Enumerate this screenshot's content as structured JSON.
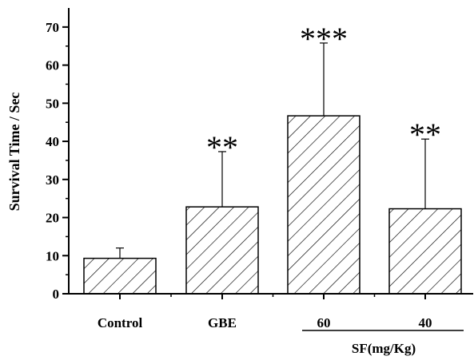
{
  "chart_data": {
    "type": "bar",
    "ylabel": "Survival Time / Sec",
    "ylim": [
      0,
      75
    ],
    "yticks": [
      0,
      10,
      20,
      30,
      40,
      50,
      60,
      70
    ],
    "categories": [
      "Control",
      "GBE",
      "60",
      "40"
    ],
    "values": [
      9.3,
      22.8,
      46.7,
      22.3
    ],
    "error_upper": [
      12.0,
      37.3,
      65.8,
      40.6
    ],
    "significance": [
      "",
      "**",
      "***",
      "**"
    ],
    "group_label": "SF(mg/Kg)",
    "bar_fill": "diagonal hatch",
    "colors": {
      "bar_stroke": "#000000",
      "hatch": "#000000",
      "axis": "#000000"
    }
  }
}
